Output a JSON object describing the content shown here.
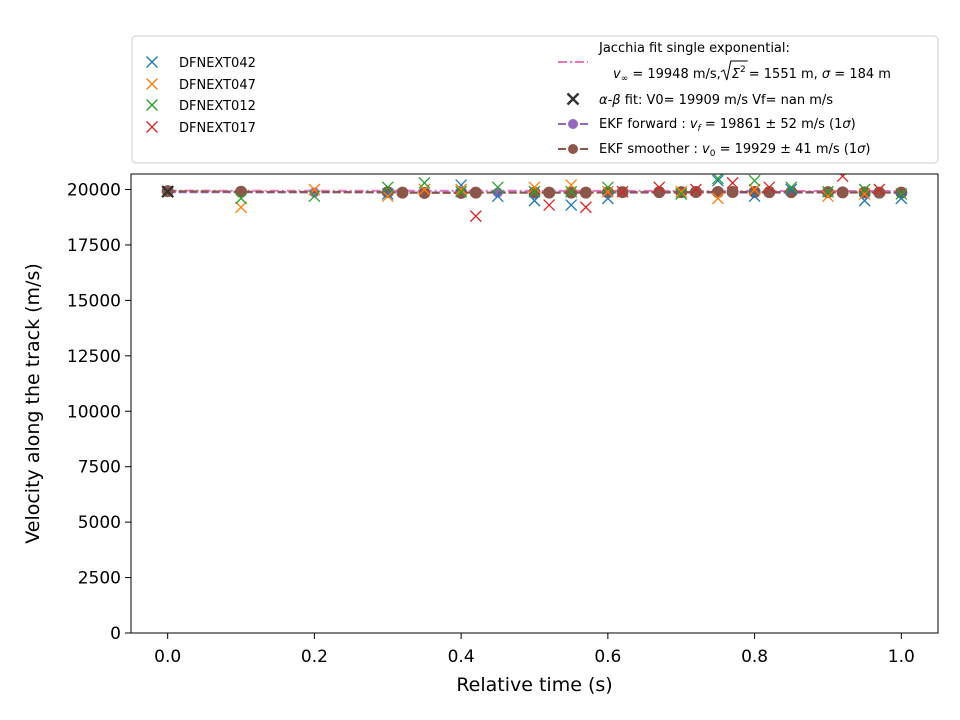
{
  "chart_data": {
    "type": "scatter",
    "title": "",
    "xlabel": "Relative time (s)",
    "ylabel": "Velocity along the track (m/s)",
    "xlim": [
      -0.05,
      1.05
    ],
    "ylim": [
      0,
      20700
    ],
    "xticks": [
      0.0,
      0.2,
      0.4,
      0.6,
      0.8,
      1.0
    ],
    "xtick_labels": [
      "0.0",
      "0.2",
      "0.4",
      "0.6",
      "0.8",
      "1.0"
    ],
    "yticks": [
      0,
      2500,
      5000,
      7500,
      10000,
      12500,
      15000,
      17500,
      20000
    ],
    "ytick_labels": [
      "0",
      "2500",
      "5000",
      "7500",
      "10000",
      "12500",
      "15000",
      "17500",
      "20000"
    ],
    "grid": false,
    "legend_left": {
      "placement": "top-left (above plot)",
      "entries": [
        "DFNEXT042",
        "DFNEXT047",
        "DFNEXT012",
        "DFNEXT017"
      ]
    },
    "legend_right": {
      "placement": "top-right (above plot)",
      "jacchia_title": "Jacchia fit single exponential:",
      "jacchia_vinf": "v",
      "jacchia_vinf_sub": "∞",
      "jacchia_p1": " = 19948 m/s, ",
      "jacchia_sqrt_arg": "Σ",
      "jacchia_sqrt_sup": "2",
      "jacchia_p2": " = 1551 m, ",
      "jacchia_sigma": "σ",
      "jacchia_p3": " = 184 m",
      "ab_greek": "α-β",
      "ab_text": " fit: V0= 19909 m/s   Vf= nan m/s",
      "ekf_forward_a": "EKF forward : ",
      "ekf_forward_v": "v",
      "ekf_forward_sub": "f",
      "ekf_forward_b": " =  19861 ± 52 m/s (1",
      "ekf_forward_sig": "σ",
      "ekf_forward_c": ")",
      "ekf_smoother_a": "EKF smoother : ",
      "ekf_smoother_v": "v",
      "ekf_smoother_sub": "0",
      "ekf_smoother_b": " =  19929 ± 41 m/s (1",
      "ekf_smoother_sig": "σ",
      "ekf_smoother_c": ")"
    },
    "series": [
      {
        "name": "DFNEXT042",
        "marker": "x",
        "color": "#1f77b4",
        "x": [
          0.0,
          0.3,
          0.4,
          0.45,
          0.5,
          0.55,
          0.6,
          0.7,
          0.75,
          0.8,
          0.85,
          0.95,
          1.0
        ],
        "y": [
          19900,
          19800,
          20200,
          19700,
          19500,
          19300,
          19600,
          19800,
          20400,
          19700,
          20000,
          19500,
          19600
        ]
      },
      {
        "name": "DFNEXT047",
        "marker": "x",
        "color": "#ff7f0e",
        "x": [
          0.0,
          0.1,
          0.2,
          0.3,
          0.35,
          0.4,
          0.5,
          0.55,
          0.6,
          0.7,
          0.75,
          0.8,
          0.9,
          0.95
        ],
        "y": [
          19900,
          19200,
          20000,
          19700,
          20000,
          20000,
          20100,
          20200,
          19900,
          19900,
          19600,
          20000,
          19700,
          19800
        ]
      },
      {
        "name": "DFNEXT012",
        "marker": "x",
        "color": "#2ca02c",
        "x": [
          0.0,
          0.1,
          0.2,
          0.3,
          0.35,
          0.4,
          0.45,
          0.5,
          0.55,
          0.6,
          0.7,
          0.75,
          0.8,
          0.85,
          0.9,
          0.95,
          1.0
        ],
        "y": [
          19900,
          19600,
          19700,
          20100,
          20300,
          19900,
          20100,
          19900,
          19900,
          20100,
          19800,
          20500,
          20400,
          20100,
          19900,
          20000,
          19800
        ]
      },
      {
        "name": "DFNEXT017",
        "marker": "x",
        "color": "#d62728",
        "x": [
          0.42,
          0.52,
          0.57,
          0.62,
          0.67,
          0.72,
          0.77,
          0.82,
          0.92,
          0.97
        ],
        "y": [
          18800,
          19300,
          19200,
          19900,
          20100,
          20000,
          20300,
          20100,
          20600,
          20000
        ]
      }
    ],
    "jacchia_fit": {
      "color": "#e377c2",
      "style": "dash-dot",
      "x": [
        0.0,
        0.2,
        0.4,
        0.6,
        0.8,
        1.0
      ],
      "y": [
        19948,
        19946,
        19943,
        19940,
        19936,
        19932
      ]
    },
    "alpha_beta_fit": {
      "color": "#333333",
      "marker": "x",
      "x": [
        0.0
      ],
      "y": [
        19909
      ]
    },
    "ekf_forward": {
      "color": "#9467bd",
      "marker": "circle",
      "x": [
        0.0,
        0.1,
        0.2,
        0.3,
        0.32,
        0.35,
        0.4,
        0.42,
        0.45,
        0.5,
        0.52,
        0.55,
        0.57,
        0.6,
        0.62,
        0.67,
        0.7,
        0.72,
        0.75,
        0.77,
        0.8,
        0.82,
        0.85,
        0.9,
        0.92,
        0.95,
        0.97,
        1.0
      ],
      "y": [
        19880,
        19875,
        19870,
        19868,
        19866,
        19865,
        19864,
        19863,
        19863,
        19862,
        19862,
        19862,
        19862,
        19862,
        19861,
        19861,
        19861,
        19861,
        19861,
        19861,
        19861,
        19861,
        19861,
        19861,
        19861,
        19861,
        19861,
        19861
      ]
    },
    "ekf_smoother": {
      "color": "#8c564b",
      "marker": "circle",
      "x": [
        0.0,
        0.1,
        0.3,
        0.32,
        0.35,
        0.4,
        0.42,
        0.5,
        0.52,
        0.55,
        0.57,
        0.6,
        0.62,
        0.67,
        0.7,
        0.72,
        0.75,
        0.77,
        0.8,
        0.82,
        0.85,
        0.9,
        0.92,
        0.95,
        0.97,
        1.0
      ],
      "y": [
        19929,
        19900,
        19880,
        19860,
        19850,
        19850,
        19860,
        19860,
        19860,
        19860,
        19860,
        19870,
        19880,
        19880,
        19880,
        19890,
        19890,
        19890,
        19890,
        19880,
        19880,
        19880,
        19870,
        19870,
        19860,
        19860
      ]
    }
  }
}
